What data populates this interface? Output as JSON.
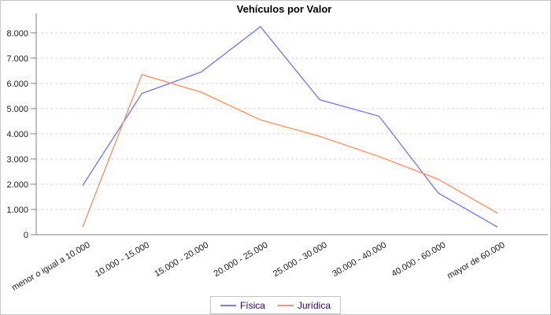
{
  "chart_data": {
    "type": "line",
    "title": "Vehículos por Valor",
    "categories": [
      "menor o igual a 10.000",
      "10.000 - 15.000",
      "15.000 - 20.000",
      "20.000 - 25.000",
      "25.000 - 30.000",
      "30.000 - 40.000",
      "40.000 - 60.000",
      "mayor de 60.000"
    ],
    "series": [
      {
        "name": "Física",
        "color": "#7c7ce8",
        "values": [
          1950,
          5600,
          6450,
          8250,
          5350,
          4700,
          1650,
          300
        ]
      },
      {
        "name": "Jurídica",
        "color": "#fa9268",
        "values": [
          300,
          6350,
          5650,
          4550,
          3900,
          3100,
          2200,
          850
        ]
      }
    ],
    "xlabel": "",
    "ylabel": "",
    "ylim": [
      0,
      8650
    ],
    "ytick_interval": 1000,
    "ytick_labels": [
      "0",
      "1.000",
      "2.000",
      "3.000",
      "4.000",
      "5.000",
      "6.000",
      "7.000",
      "8.000"
    ],
    "grid": true,
    "legend_position": "bottom"
  },
  "colors": {
    "axis": "#808080",
    "grid": "#d9d9d9",
    "tick_text": "#1a1a1a",
    "legend_text": "#330066",
    "title_text": "#000000"
  }
}
